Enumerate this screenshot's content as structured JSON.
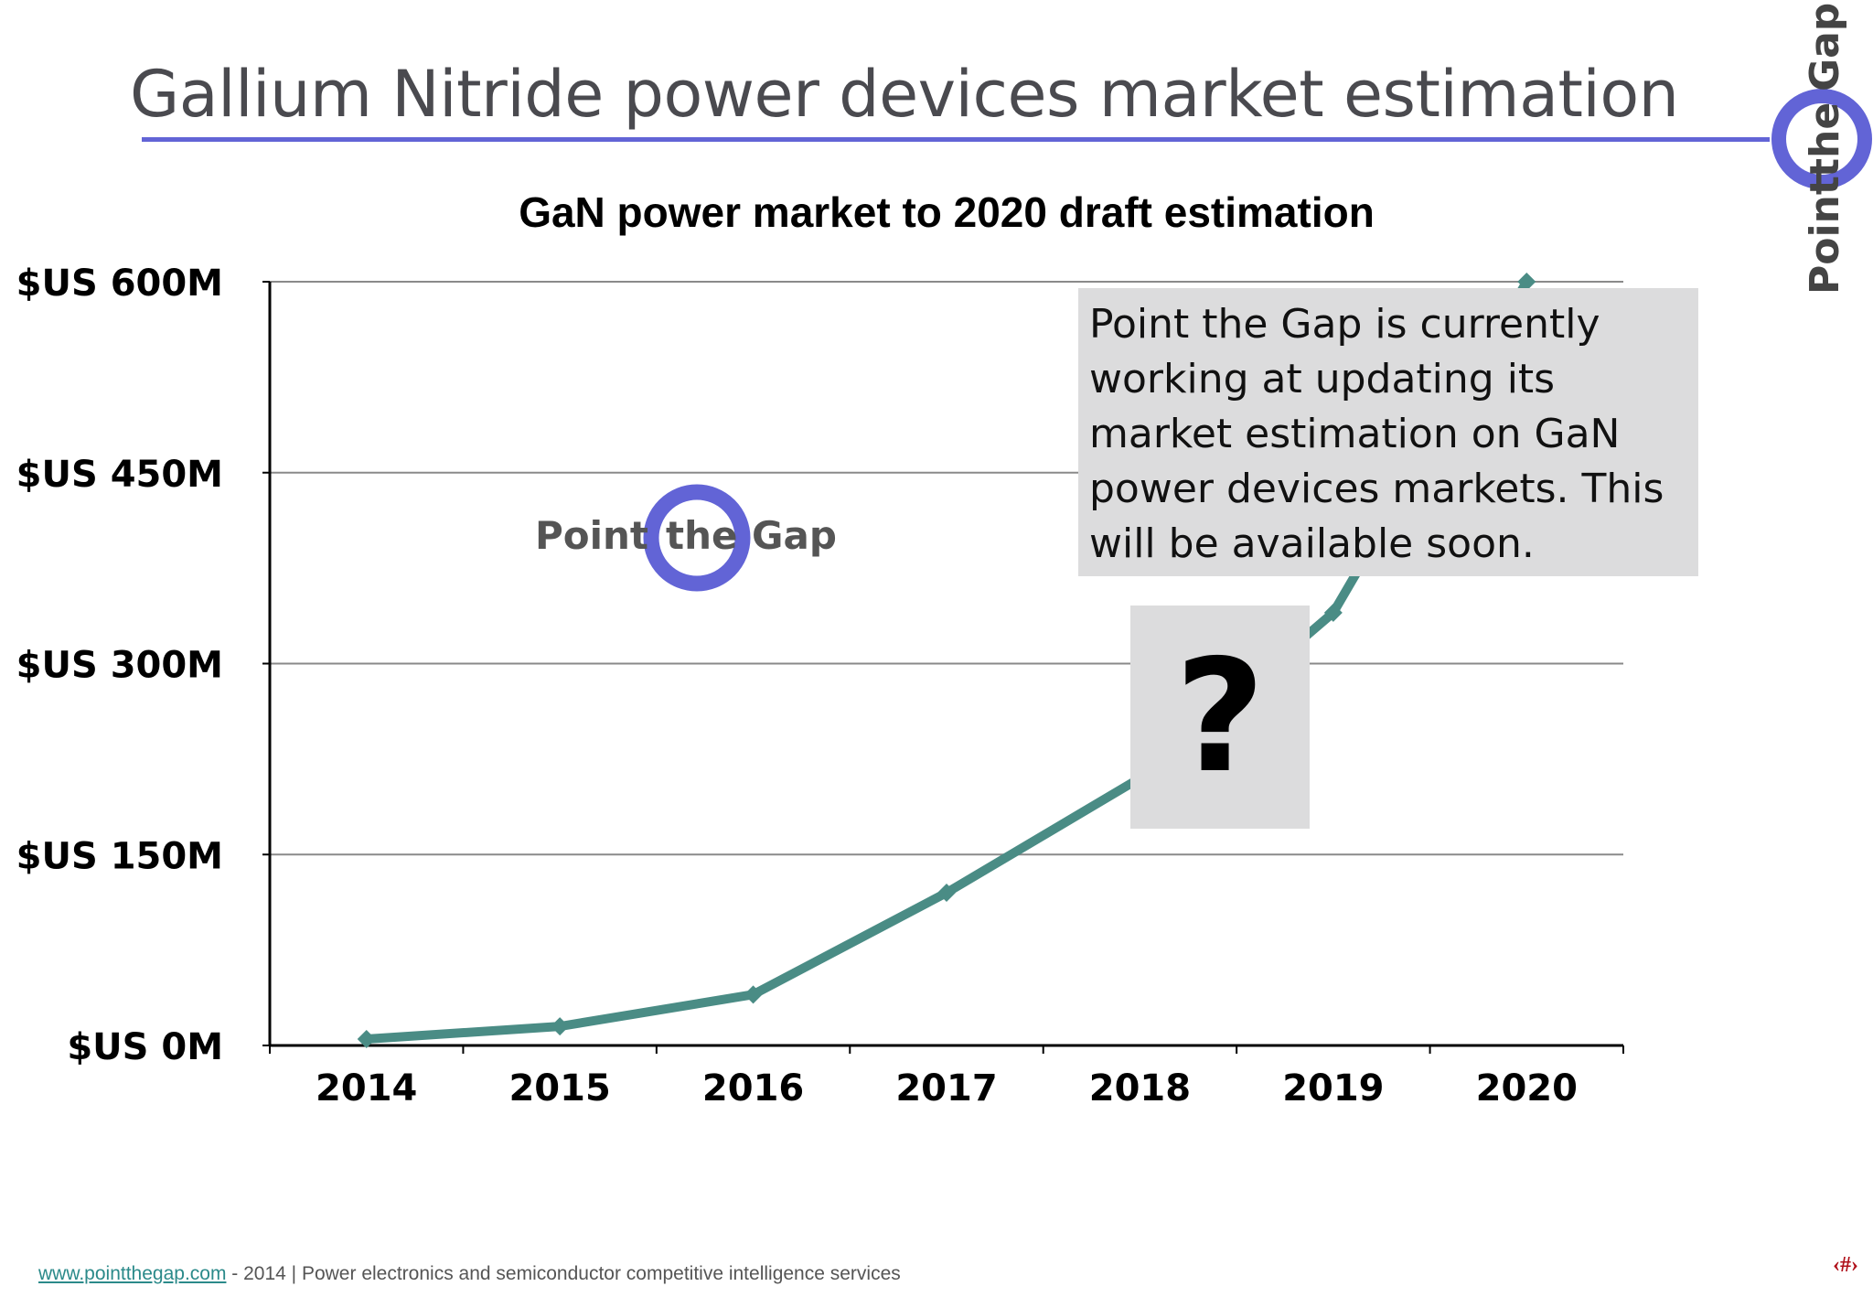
{
  "slide": {
    "title": "Gallium Nitride power devices market estimation",
    "logo_text": {
      "word1": "Point",
      "word2": "the",
      "word3": "Gap"
    },
    "note": "Point the Gap is currently working at updating its market estimation on GaN power devices markets. This will be available soon.",
    "question_mark": "?",
    "footer": {
      "link": "www.pointthegap.com",
      "text": " - 2014 | Power electronics and semiconductor competitive intelligence services"
    },
    "page_number": "‹#›"
  },
  "colors": {
    "accent": "#6264d6",
    "series": "#4a8c85",
    "box": "#dcdcdd"
  },
  "chart_data": {
    "type": "line",
    "title": "GaN power market to 2020 draft estimation",
    "xlabel": "",
    "ylabel": "",
    "categories": [
      "2014",
      "2015",
      "2016",
      "2017",
      "2018",
      "2019",
      "2020"
    ],
    "series": [
      {
        "values": [
          5,
          15,
          40,
          120,
          210,
          340,
          600
        ]
      }
    ],
    "ylim": [
      0,
      600
    ],
    "yticks": [
      0,
      150,
      300,
      450,
      600
    ],
    "ytick_labels": [
      "$US 0M",
      "$US 150M",
      "$US 300M",
      "$US 450M",
      "$US 600M"
    ],
    "grid": true,
    "legend": "none",
    "inset_logo": {
      "word1": "Point",
      "word2": "the",
      "word3": "Gap"
    }
  }
}
